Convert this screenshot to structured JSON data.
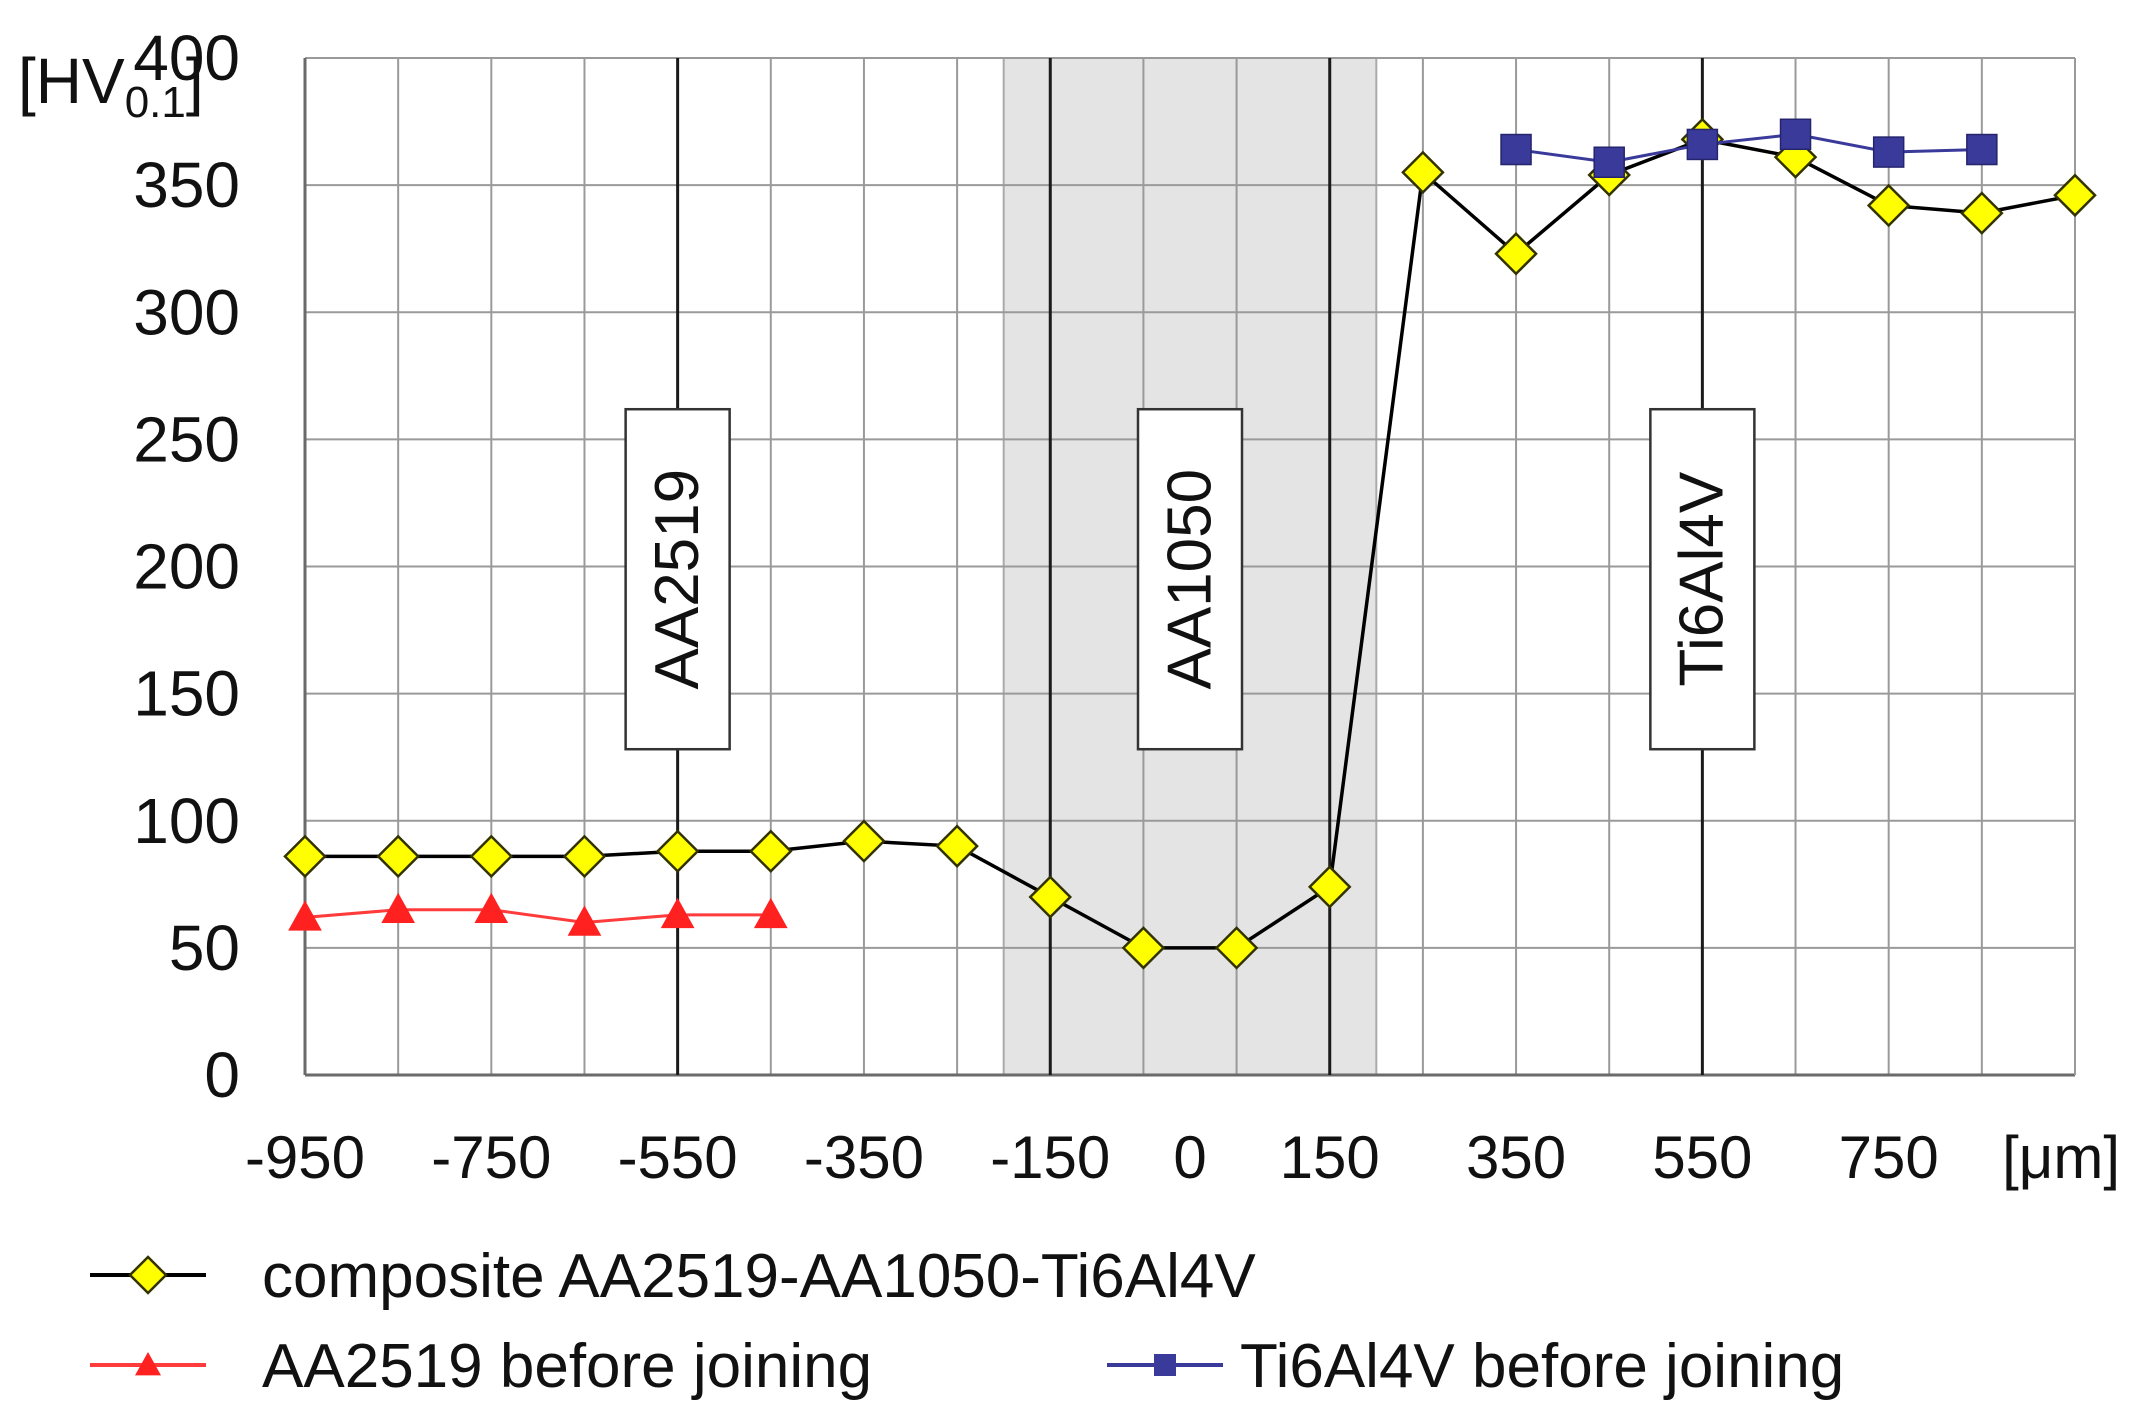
{
  "chart_data": {
    "type": "line",
    "title": "",
    "ylabel_main": "[HV",
    "ylabel_sub": "0.1",
    "ylabel_close": "]",
    "xlabel": "[μm]",
    "xlim": [
      -950,
      950
    ],
    "ylim": [
      0,
      400
    ],
    "grid": true,
    "x_ticks": [
      -950,
      -850,
      -750,
      -650,
      -550,
      -450,
      -350,
      -250,
      -150,
      -50,
      50,
      150,
      250,
      350,
      450,
      550,
      650,
      750,
      850,
      950
    ],
    "x_tick_labels": [
      {
        "value": -950,
        "label": "-950"
      },
      {
        "value": -750,
        "label": "-750"
      },
      {
        "value": -550,
        "label": "-550"
      },
      {
        "value": -350,
        "label": "-350"
      },
      {
        "value": -150,
        "label": "-150"
      },
      {
        "value": 0,
        "label": "0"
      },
      {
        "value": 150,
        "label": "150"
      },
      {
        "value": 350,
        "label": "350"
      },
      {
        "value": 550,
        "label": "550"
      },
      {
        "value": 750,
        "label": "750"
      }
    ],
    "y_ticks": [
      0,
      50,
      100,
      150,
      200,
      250,
      300,
      350,
      400
    ],
    "y_tick_labels": [
      "0",
      "50",
      "100",
      "150",
      "200",
      "250",
      "300",
      "350",
      "400"
    ],
    "shaded_region": {
      "x_start": -200,
      "x_end": 200,
      "color": "#e4e4e4"
    },
    "region_lines": [
      -550,
      -150,
      150,
      550
    ],
    "annotations": [
      {
        "text": "AA2519",
        "x": -550,
        "y": 195
      },
      {
        "text": "AA1050",
        "x": 0,
        "y": 195
      },
      {
        "text": "Ti6Al4V",
        "x": 550,
        "y": 195
      }
    ],
    "series": [
      {
        "name": "composite AA2519-AA1050-Ti6Al4V",
        "color": "#000000",
        "marker": "diamond",
        "marker_color": "#ffff00",
        "x": [
          -950,
          -850,
          -750,
          -650,
          -550,
          -450,
          -350,
          -250,
          -150,
          -50,
          50,
          150,
          250,
          350,
          450,
          550,
          650,
          750,
          850,
          950
        ],
        "values": [
          86,
          86,
          86,
          86,
          88,
          88,
          92,
          90,
          70,
          50,
          50,
          74,
          355,
          323,
          354,
          368,
          361,
          342,
          339,
          346
        ]
      },
      {
        "name": "AA2519 before joining",
        "color": "#ff3b3b",
        "marker": "triangle",
        "marker_color": "#ff2020",
        "x": [
          -950,
          -850,
          -750,
          -650,
          -550,
          -450
        ],
        "values": [
          62,
          65,
          65,
          60,
          63,
          63
        ]
      },
      {
        "name": "Ti6Al4V before joining",
        "color": "#3a3a9a",
        "marker": "square",
        "marker_color": "#3a3a9a",
        "x": [
          350,
          450,
          550,
          650,
          750,
          850
        ],
        "values": [
          364,
          359,
          366,
          370,
          363,
          364
        ]
      }
    ]
  }
}
